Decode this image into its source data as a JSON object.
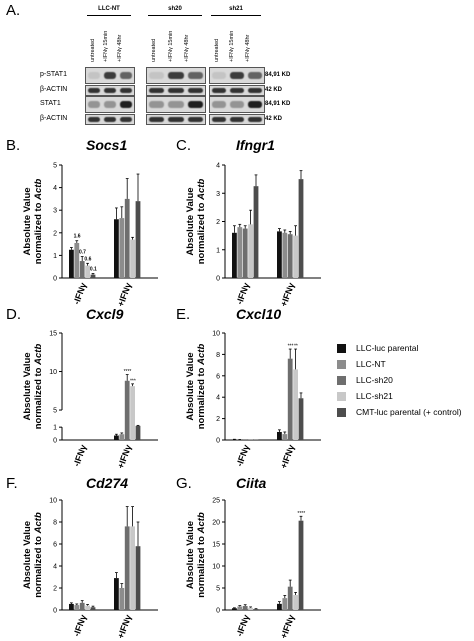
{
  "panel_a": {
    "letter": "A.",
    "groups": [
      "LLC-NT",
      "sh20",
      "sh21"
    ],
    "lanes": [
      "untreated",
      "+IFNγ 15min",
      "+IFNγ 48hr"
    ],
    "rows": [
      {
        "label": "p-STAT1",
        "kd": "84,91 KD"
      },
      {
        "label": "β-ACTIN",
        "kd": "42 KD"
      },
      {
        "label": "STAT1",
        "kd": "84,91 KD"
      },
      {
        "label": "β-ACTIN",
        "kd": "42 KD"
      }
    ]
  },
  "legend": {
    "items": [
      {
        "label": "LLC-luc parental",
        "color": "#111111"
      },
      {
        "label": "LLC-NT",
        "color": "#8c8c8c"
      },
      {
        "label": "LLC-sh20",
        "color": "#6e6e6e"
      },
      {
        "label": "LLC-sh21",
        "color": "#c8c8c8"
      },
      {
        "label": "CMT-luc parental (+ control)",
        "color": "#4d4d4d"
      }
    ]
  },
  "chart_data": [
    {
      "panel": "B.",
      "type": "bar",
      "title": "Socs1",
      "ylabel": "Absolute Value normalized to Actb",
      "categories": [
        "-IFNγ",
        "+IFNγ"
      ],
      "ylim": [
        0,
        5
      ],
      "yticks": [
        0,
        1,
        2,
        3,
        4,
        5
      ],
      "series_values": [
        [
          1.25,
          2.6
        ],
        [
          1.55,
          2.65
        ],
        [
          0.75,
          3.5
        ],
        [
          0.55,
          1.7
        ],
        [
          0.15,
          3.4
        ]
      ],
      "errors": [
        [
          0.1,
          0.5
        ],
        [
          0.1,
          0.5
        ],
        [
          0.2,
          0.9
        ],
        [
          0.1,
          0.1
        ],
        [
          0.05,
          1.2
        ]
      ],
      "annotations": [
        "1.6",
        "0.7",
        "0.6",
        "0.1"
      ]
    },
    {
      "panel": "C.",
      "type": "bar",
      "title": "Ifngr1",
      "ylabel": "Absolute Value normalized to Actb",
      "categories": [
        "-IFNγ",
        "+IFNγ"
      ],
      "ylim": [
        0,
        4
      ],
      "yticks": [
        0,
        1,
        2,
        3,
        4
      ],
      "series_values": [
        [
          1.6,
          1.65
        ],
        [
          1.8,
          1.6
        ],
        [
          1.75,
          1.55
        ],
        [
          1.9,
          1.5
        ],
        [
          3.25,
          3.5
        ]
      ],
      "errors": [
        [
          0.25,
          0.1
        ],
        [
          0.1,
          0.1
        ],
        [
          0.1,
          0.1
        ],
        [
          0.5,
          0.35
        ],
        [
          0.4,
          0.3
        ]
      ],
      "annotations": []
    },
    {
      "panel": "D.",
      "type": "bar",
      "title": "Cxcl9",
      "ylabel": "Absolute Value normalized to Actb",
      "categories": [
        "-IFNγ",
        "+IFNγ"
      ],
      "ylim": [
        0,
        15
      ],
      "yticks": [
        0,
        1,
        5,
        10,
        15
      ],
      "series_values": [
        [
          0.0,
          0.35
        ],
        [
          0.0,
          0.45
        ],
        [
          0.0,
          8.8
        ],
        [
          0.0,
          8.1
        ],
        [
          0.0,
          2.3
        ]
      ],
      "errors": [
        [
          0,
          0.1
        ],
        [
          0,
          0.1
        ],
        [
          0,
          0.8
        ],
        [
          0,
          0.3
        ],
        [
          0,
          0.5
        ]
      ],
      "annotations": [
        "****",
        "***"
      ]
    },
    {
      "panel": "E.",
      "type": "bar",
      "title": "Cxcl10",
      "ylabel": "Absolute Value normalized to Actb",
      "categories": [
        "-IFNγ",
        "+IFNγ"
      ],
      "ylim": [
        0,
        10
      ],
      "yticks": [
        0,
        2,
        4,
        6,
        8,
        10
      ],
      "series_values": [
        [
          0.05,
          0.75
        ],
        [
          0.03,
          0.55
        ],
        [
          0.02,
          7.6
        ],
        [
          0.02,
          6.6
        ],
        [
          0.05,
          3.9
        ]
      ],
      "errors": [
        [
          0.02,
          0.2
        ],
        [
          0.02,
          0.2
        ],
        [
          0,
          0.9
        ],
        [
          0,
          1.9
        ],
        [
          0,
          0.5
        ]
      ],
      "annotations": [
        "***",
        "**"
      ]
    },
    {
      "panel": "F.",
      "type": "bar",
      "title": "Cd274",
      "ylabel": "Absolute Value normalized to Actb",
      "categories": [
        "-IFNγ",
        "+IFNγ"
      ],
      "ylim": [
        0,
        10
      ],
      "yticks": [
        0,
        2,
        4,
        6,
        8,
        10
      ],
      "series_values": [
        [
          0.55,
          2.9
        ],
        [
          0.45,
          2.0
        ],
        [
          0.65,
          7.6
        ],
        [
          0.4,
          7.6
        ],
        [
          0.25,
          5.8
        ]
      ],
      "errors": [
        [
          0.1,
          0.5
        ],
        [
          0.1,
          0.4
        ],
        [
          0.2,
          1.8
        ],
        [
          0.1,
          1.8
        ],
        [
          0.1,
          2.2
        ]
      ],
      "annotations": []
    },
    {
      "panel": "G.",
      "type": "bar",
      "title": "Ciita",
      "ylabel": "Absolute Value normalized to Actb",
      "categories": [
        "-IFNγ",
        "+IFNγ"
      ],
      "ylim": [
        0,
        25
      ],
      "yticks": [
        0,
        5,
        10,
        15,
        20,
        25
      ],
      "series_values": [
        [
          0.4,
          1.4
        ],
        [
          0.8,
          2.7
        ],
        [
          0.9,
          5.3
        ],
        [
          0.5,
          3.4
        ],
        [
          0.2,
          20.3
        ]
      ],
      "errors": [
        [
          0.1,
          0.5
        ],
        [
          0.2,
          0.6
        ],
        [
          0.3,
          1.5
        ],
        [
          0.2,
          0.6
        ],
        [
          0.1,
          1.0
        ]
      ],
      "annotations": [
        "****"
      ]
    }
  ]
}
